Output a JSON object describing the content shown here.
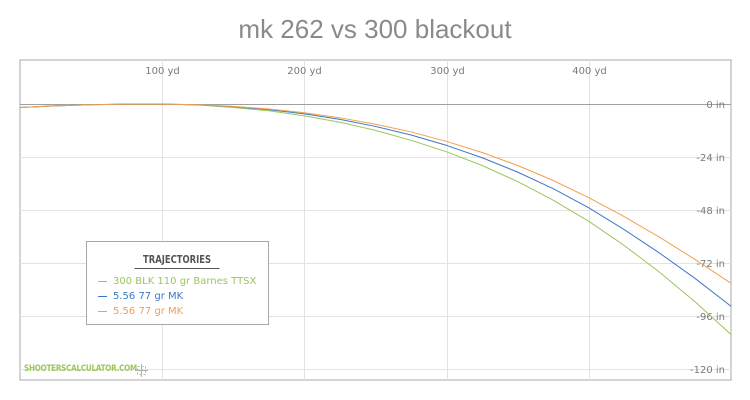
{
  "title": "mk 262 vs 300 blackout",
  "watermark": "SHOOTERSCALCULATOR.COM",
  "chart_data": {
    "type": "line",
    "title": "mk 262 vs 300 blackout",
    "xlabel": "",
    "ylabel": "",
    "xlim": [
      0,
      500
    ],
    "ylim": [
      -125,
      20
    ],
    "x_ticks": [
      {
        "value": 100,
        "label": "100 yd"
      },
      {
        "value": 200,
        "label": "200 yd"
      },
      {
        "value": 300,
        "label": "300 yd"
      },
      {
        "value": 400,
        "label": "400 yd"
      }
    ],
    "y_ticks": [
      {
        "value": 0,
        "label": "0 in"
      },
      {
        "value": -24,
        "label": "-24 in"
      },
      {
        "value": -48,
        "label": "-48 in"
      },
      {
        "value": -72,
        "label": "-72 in"
      },
      {
        "value": -96,
        "label": "-96 in"
      },
      {
        "value": -120,
        "label": "-120 in"
      }
    ],
    "grid": true,
    "legend": {
      "title": "TRAJECTORIES",
      "position": "bottom-left"
    },
    "series": [
      {
        "name": "300 BLK 110 gr Barnes TTSX",
        "color": "#9bc65c",
        "x": [
          0,
          25,
          50,
          75,
          100,
          125,
          150,
          175,
          200,
          225,
          250,
          275,
          300,
          325,
          350,
          375,
          400,
          425,
          450,
          475,
          500
        ],
        "y": [
          -1.5,
          -0.7,
          -0.2,
          0,
          0,
          -0.4,
          -1.5,
          -3.0,
          -5.3,
          -8.2,
          -11.9,
          -16.4,
          -21.6,
          -27.8,
          -35.1,
          -43.5,
          -53.1,
          -64.1,
          -76.3,
          -89.7,
          -104.4
        ]
      },
      {
        "name": "5.56 77 gr MK",
        "color": "#3c78c8",
        "x": [
          0,
          25,
          50,
          75,
          100,
          125,
          150,
          175,
          200,
          225,
          250,
          275,
          300,
          325,
          350,
          375,
          400,
          425,
          450,
          475,
          500
        ],
        "y": [
          -1.5,
          -0.8,
          -0.3,
          0,
          0,
          -0.3,
          -1.1,
          -2.5,
          -4.4,
          -6.9,
          -10.1,
          -14.0,
          -18.7,
          -24.3,
          -30.8,
          -38.3,
          -47.0,
          -56.9,
          -67.6,
          -79.1,
          -91.6
        ]
      },
      {
        "name": "5.56 77 gr MK",
        "color": "#f0a050",
        "x": [
          0,
          25,
          50,
          75,
          100,
          125,
          150,
          175,
          200,
          225,
          250,
          275,
          300,
          325,
          350,
          375,
          400,
          425,
          450,
          475,
          500
        ],
        "y": [
          -1.5,
          -0.8,
          -0.3,
          0,
          0,
          -0.3,
          -1.0,
          -2.2,
          -3.9,
          -6.2,
          -9.1,
          -12.6,
          -16.9,
          -21.9,
          -27.8,
          -34.6,
          -42.4,
          -51.0,
          -60.4,
          -70.5,
          -81.2
        ]
      }
    ]
  }
}
